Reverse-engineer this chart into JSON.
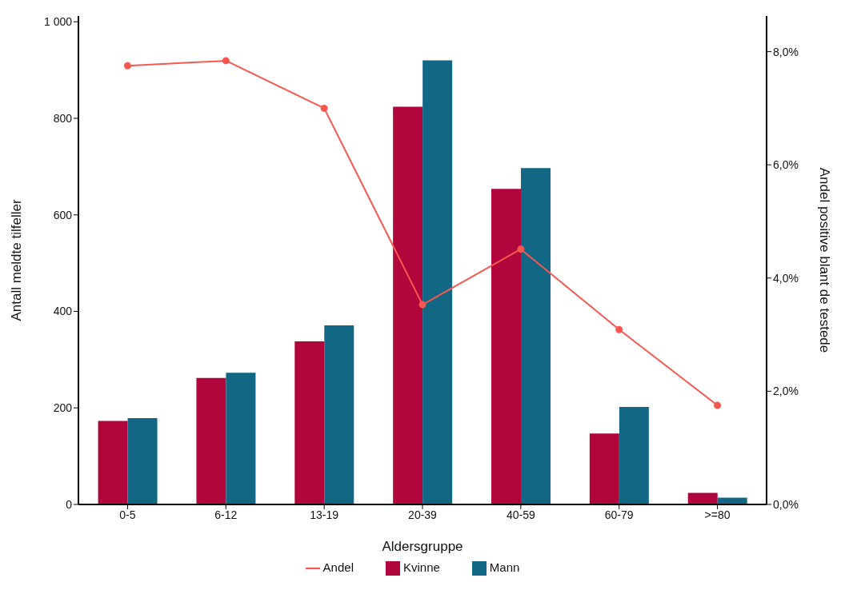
{
  "chart_data": {
    "type": "bar",
    "xlabel": "Aldersgruppe",
    "ylabel": "Antall meldte tilfeller",
    "y2label": "Andel positive blant de testede",
    "categories": [
      "0-5",
      "6-12",
      "13-19",
      "20-39",
      "40-59",
      "60-79",
      ">=80"
    ],
    "series": [
      {
        "name": "Kvinne",
        "color": "#b0063c",
        "values": [
          173,
          262,
          338,
          824,
          654,
          147,
          24
        ]
      },
      {
        "name": "Mann",
        "color": "#116784",
        "values": [
          179,
          273,
          371,
          920,
          697,
          202,
          14
        ]
      },
      {
        "name": "Andel",
        "type": "line",
        "axis": "y2",
        "color": "#f6574f",
        "marker": "circle",
        "values": [
          7.75,
          7.84,
          7.0,
          3.53,
          4.51,
          3.09,
          1.75
        ]
      }
    ],
    "ylim": [
      0,
      1012
    ],
    "yticks": [
      0,
      200,
      400,
      600,
      800,
      {
        "value": 1000,
        "label": "1 000"
      }
    ],
    "y2lim": [
      0,
      8.63
    ],
    "y2ticks": [
      {
        "value": 0,
        "label": "0,0%"
      },
      {
        "value": 2,
        "label": "2,0%"
      },
      {
        "value": 4,
        "label": "4,0%"
      },
      {
        "value": 6,
        "label": "6,0%"
      },
      {
        "value": 8,
        "label": "8,0%"
      }
    ],
    "grid": false,
    "legend": "bottom"
  }
}
